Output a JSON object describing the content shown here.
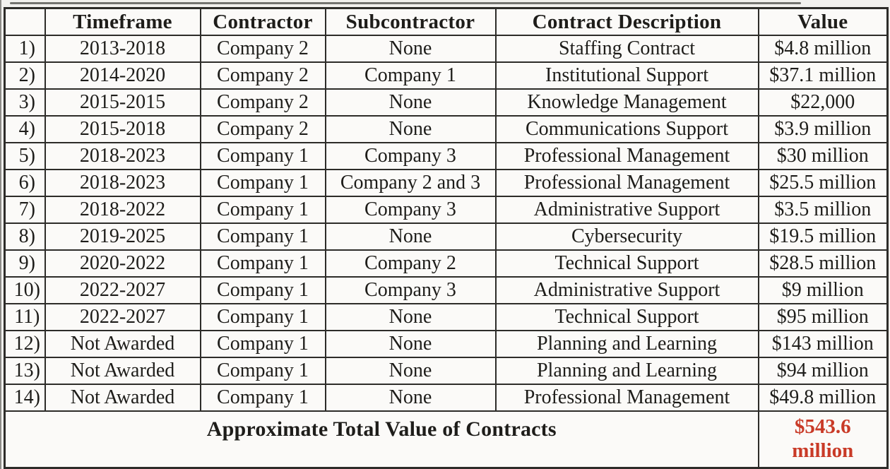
{
  "table": {
    "columns": [
      "",
      "Timeframe",
      "Contractor",
      "Subcontractor",
      "Contract Description",
      "Value"
    ],
    "rows": [
      {
        "num": "1)",
        "timeframe": "2013-2018",
        "contractor": "Company 2",
        "subcontractor": "None",
        "description": "Staffing Contract",
        "value": "$4.8 million"
      },
      {
        "num": "2)",
        "timeframe": "2014-2020",
        "contractor": "Company 2",
        "subcontractor": "Company 1",
        "description": "Institutional Support",
        "value": "$37.1 million"
      },
      {
        "num": "3)",
        "timeframe": "2015-2015",
        "contractor": "Company 2",
        "subcontractor": "None",
        "description": "Knowledge Management",
        "value": "$22,000"
      },
      {
        "num": "4)",
        "timeframe": "2015-2018",
        "contractor": "Company 2",
        "subcontractor": "None",
        "description": "Communications Support",
        "value": "$3.9 million"
      },
      {
        "num": "5)",
        "timeframe": "2018-2023",
        "contractor": "Company 1",
        "subcontractor": "Company 3",
        "description": "Professional Management",
        "value": "$30 million"
      },
      {
        "num": "6)",
        "timeframe": "2018-2023",
        "contractor": "Company 1",
        "subcontractor": "Company 2 and 3",
        "description": "Professional Management",
        "value": "$25.5 million"
      },
      {
        "num": "7)",
        "timeframe": "2018-2022",
        "contractor": "Company 1",
        "subcontractor": "Company 3",
        "description": "Administrative Support",
        "value": "$3.5 million"
      },
      {
        "num": "8)",
        "timeframe": "2019-2025",
        "contractor": "Company 1",
        "subcontractor": "None",
        "description": "Cybersecurity",
        "value": "$19.5 million"
      },
      {
        "num": "9)",
        "timeframe": "2020-2022",
        "contractor": "Company 1",
        "subcontractor": "Company 2",
        "description": "Technical Support",
        "value": "$28.5 million"
      },
      {
        "num": "10)",
        "timeframe": "2022-2027",
        "contractor": "Company 1",
        "subcontractor": "Company 3",
        "description": "Administrative Support",
        "value": "$9 million"
      },
      {
        "num": "11)",
        "timeframe": "2022-2027",
        "contractor": "Company 1",
        "subcontractor": "None",
        "description": "Technical Support",
        "value": "$95 million"
      },
      {
        "num": "12)",
        "timeframe": "Not Awarded",
        "contractor": "Company 1",
        "subcontractor": "None",
        "description": "Planning and Learning",
        "value": "$143 million"
      },
      {
        "num": "13)",
        "timeframe": "Not Awarded",
        "contractor": "Company 1",
        "subcontractor": "None",
        "description": "Planning and Learning",
        "value": "$94 million"
      },
      {
        "num": "14)",
        "timeframe": "Not Awarded",
        "contractor": "Company 1",
        "subcontractor": "None",
        "description": "Professional Management",
        "value": "$49.8 million"
      }
    ],
    "footer": {
      "label": "Approximate Total Value of Contracts",
      "total_line1": "$543.6",
      "total_line2": "million"
    }
  },
  "colors": {
    "total_red": "#c93a27",
    "ink": "#1e1d1a",
    "border": "#2d2c29",
    "paper": "#f2f1ee",
    "cell": "#fbfaf8"
  }
}
